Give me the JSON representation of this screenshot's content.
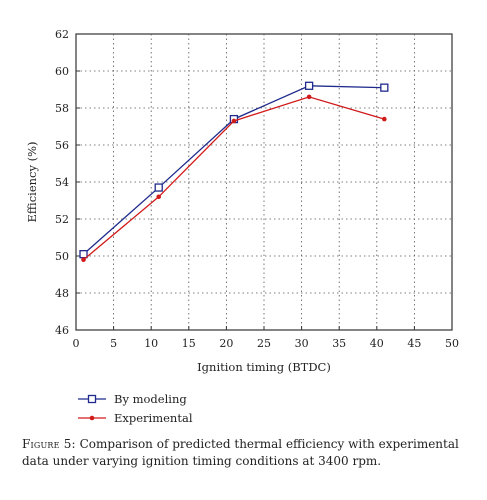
{
  "chart_data": {
    "type": "line",
    "xlabel": "Ignition timing (BTDC)",
    "ylabel": "Efficiency (%)",
    "xlim": [
      0,
      50
    ],
    "ylim": [
      46,
      62
    ],
    "xticks": [
      0,
      5,
      10,
      15,
      20,
      25,
      30,
      35,
      40,
      45,
      50
    ],
    "yticks": [
      46,
      48,
      50,
      52,
      54,
      56,
      58,
      60,
      62
    ],
    "grid": true,
    "legend_position": "bottom-left, below plot",
    "series": [
      {
        "name": "By modeling",
        "color": "#1f2a8c",
        "marker": "square-open",
        "x": [
          1,
          11,
          21,
          31,
          41
        ],
        "y": [
          50.1,
          53.7,
          57.4,
          59.2,
          59.1
        ]
      },
      {
        "name": "Experimental",
        "color": "#d11a1a",
        "marker": "dot",
        "x": [
          1,
          11,
          21,
          31,
          41
        ],
        "y": [
          49.8,
          53.2,
          57.3,
          58.6,
          57.4
        ]
      }
    ]
  },
  "caption": {
    "label": "Figure 5:",
    "text": " Comparison of predicted thermal efficiency with experimental data under varying ignition timing conditions at 3400 rpm."
  }
}
